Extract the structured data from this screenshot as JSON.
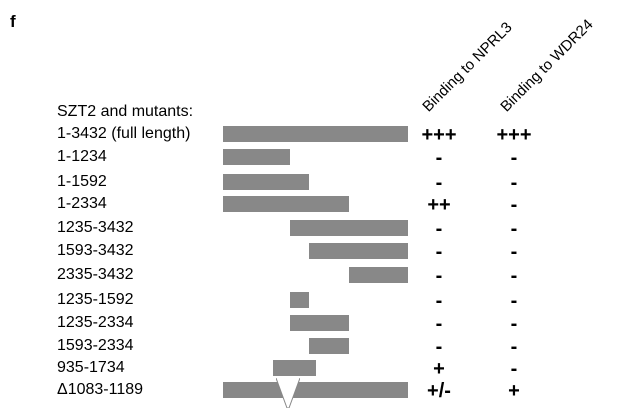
{
  "panel_letter": "f",
  "heading": "SZT2 and mutants:",
  "columns": {
    "nprl3": "Binding to NPRL3",
    "wdr24": "Binding to WDR24"
  },
  "full_length": 3432,
  "rows": [
    {
      "label": "1-3432 (full length)",
      "start": 1,
      "end": 3432,
      "nprl3": "+++",
      "wdr24": "+++"
    },
    {
      "label": "1-1234",
      "start": 1,
      "end": 1234,
      "nprl3": "-",
      "wdr24": "-"
    },
    {
      "label": "1-1592",
      "start": 1,
      "end": 1592,
      "nprl3": "-",
      "wdr24": "-"
    },
    {
      "label": "1-2334",
      "start": 1,
      "end": 2334,
      "nprl3": "++",
      "wdr24": "-"
    },
    {
      "label": "1235-3432",
      "start": 1235,
      "end": 3432,
      "nprl3": "-",
      "wdr24": "-"
    },
    {
      "label": "1593-3432",
      "start": 1593,
      "end": 3432,
      "nprl3": "-",
      "wdr24": "-"
    },
    {
      "label": "2335-3432",
      "start": 2335,
      "end": 3432,
      "nprl3": "-",
      "wdr24": "-"
    },
    {
      "label": "1235-1592",
      "start": 1235,
      "end": 1592,
      "nprl3": "-",
      "wdr24": "-"
    },
    {
      "label": "1235-2334",
      "start": 1235,
      "end": 2334,
      "nprl3": "-",
      "wdr24": "-"
    },
    {
      "label": "1593-2334",
      "start": 1593,
      "end": 2334,
      "nprl3": "-",
      "wdr24": "-"
    },
    {
      "label": "935-1734",
      "start": 935,
      "end": 1734,
      "nprl3": "+",
      "wdr24": "-"
    },
    {
      "label": "Δ1083-1189",
      "start": 1,
      "end": 3432,
      "deletion": [
        1083,
        1189
      ],
      "nprl3": "+/-",
      "wdr24": "+"
    }
  ],
  "colors": {
    "bar": "#888888",
    "text": "#000000"
  }
}
